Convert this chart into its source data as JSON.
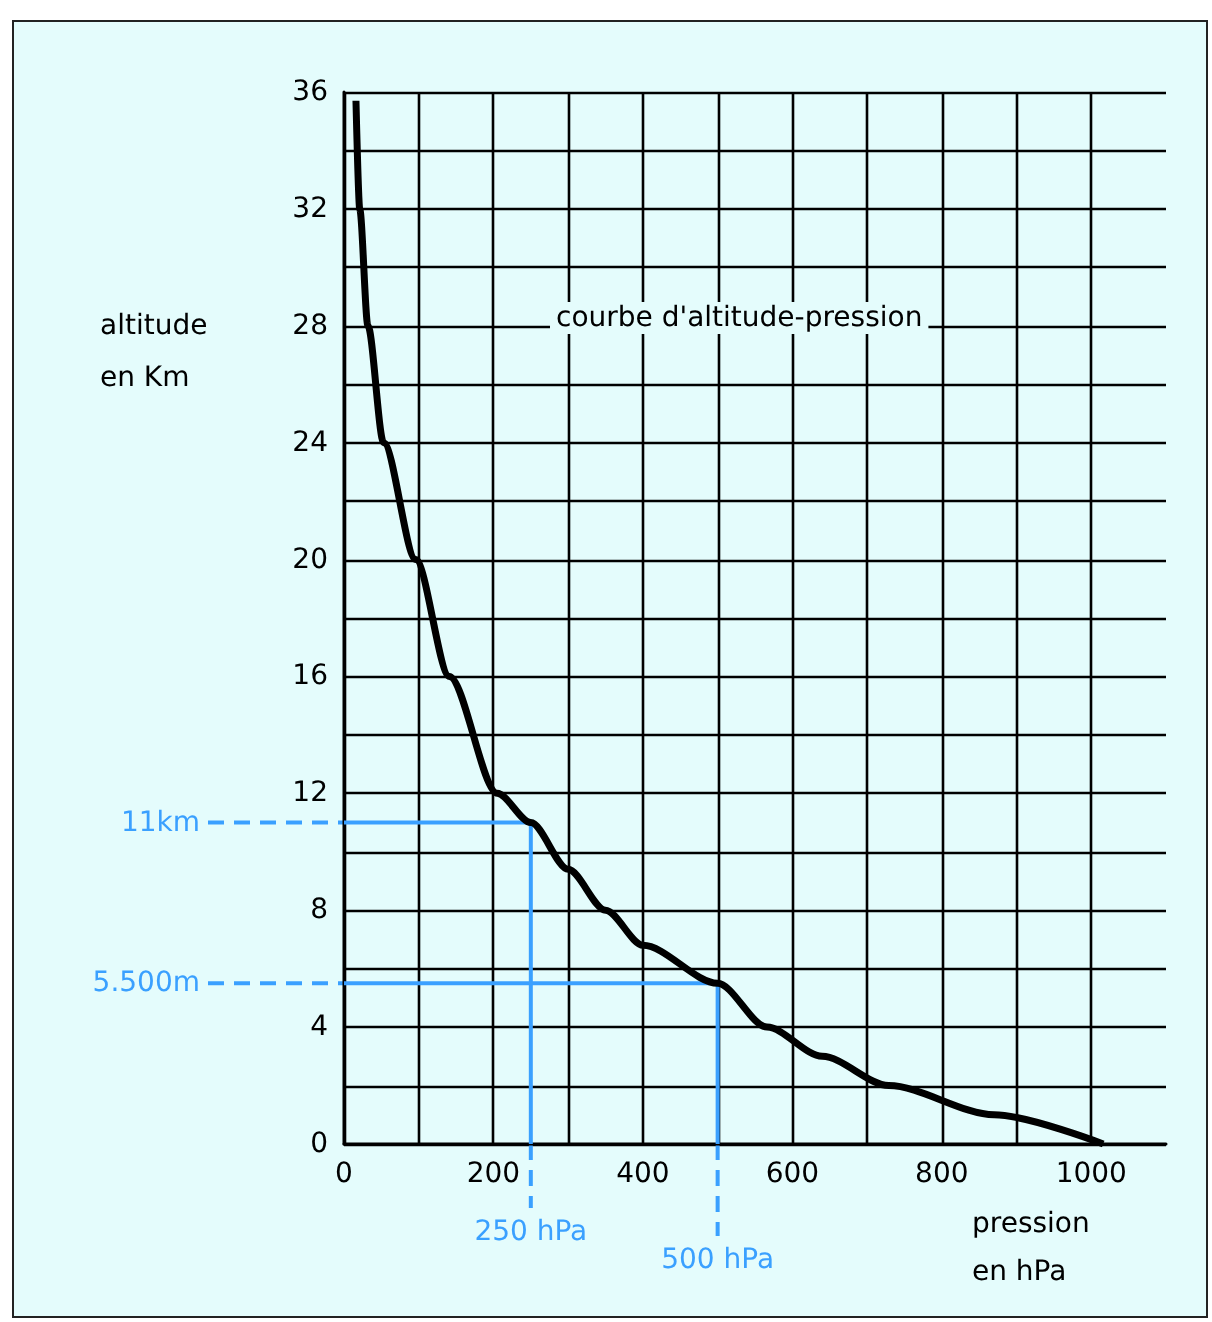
{
  "chart_data": {
    "type": "line",
    "title": "courbe d'altitude-pression",
    "xlabel": "pression en hPa",
    "ylabel": "altitude en Km",
    "x": [
      16,
      21,
      32,
      53,
      96,
      141,
      205,
      250,
      300,
      350,
      400,
      500,
      566,
      640,
      729,
      870,
      1016
    ],
    "series": [
      {
        "color": "#000000",
        "values": [
          35.7,
          32,
          28,
          24,
          20,
          16,
          12,
          11,
          9.4,
          8,
          6.8,
          5.5,
          4,
          3,
          2,
          1,
          0
        ]
      },
      {
        "color": "#3aa0ff",
        "x": [
          0,
          250,
          250
        ],
        "values": [
          11,
          11,
          0
        ]
      },
      {
        "color": "#3aa0ff",
        "x": [
          0,
          500,
          500
        ],
        "values": [
          5.5,
          5.5,
          0
        ]
      }
    ],
    "xlim": [
      0,
      1100
    ],
    "xticks": [
      0,
      {
        "value": 100,
        "label": null
      },
      200,
      {
        "value": 300,
        "label": null
      },
      400,
      {
        "value": 500,
        "label": null
      },
      600,
      {
        "value": 700,
        "label": null
      },
      800,
      {
        "value": 900,
        "label": null
      },
      1000
    ],
    "ylim": [
      0,
      36
    ],
    "yticks": [
      0,
      {
        "value": 2,
        "label": null
      },
      4,
      {
        "value": 6,
        "label": null
      },
      8,
      {
        "value": 10,
        "label": null
      },
      12,
      {
        "value": 14,
        "label": null
      },
      16,
      {
        "value": 18,
        "label": null
      },
      20,
      {
        "value": 22,
        "label": null
      },
      24,
      {
        "value": 26,
        "label": null
      },
      28,
      {
        "value": 30,
        "label": null
      },
      32,
      {
        "value": 34,
        "label": null
      },
      36
    ],
    "grid": true,
    "marker": "none",
    "line_style": "solid",
    "annotations": [
      "11km",
      "250 hPa",
      "5.500m",
      "500 hPa"
    ]
  }
}
